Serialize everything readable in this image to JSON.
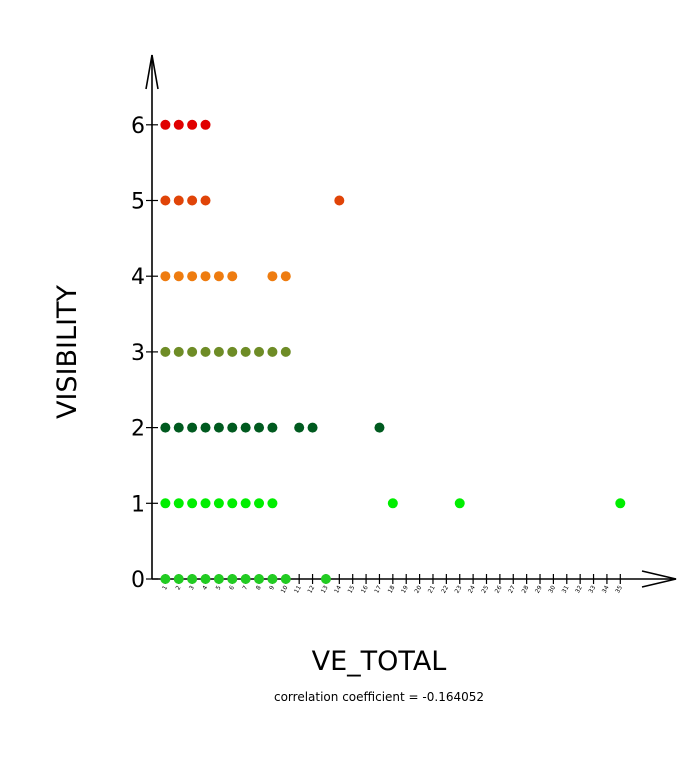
{
  "chart_data": {
    "type": "scatter",
    "title": "",
    "xlabel": "VE_TOTAL",
    "ylabel": "VISIBILITY",
    "annotation": "correlation coefficient = -0.164052",
    "xlim": [
      0,
      35
    ],
    "ylim": [
      0,
      6
    ],
    "x_ticks": [
      1,
      2,
      3,
      4,
      5,
      6,
      7,
      8,
      9,
      10,
      11,
      12,
      13,
      14,
      15,
      16,
      17,
      18,
      19,
      20,
      21,
      22,
      23,
      24,
      25,
      26,
      27,
      28,
      29,
      30,
      31,
      32,
      33,
      34,
      35
    ],
    "y_ticks": [
      0,
      1,
      2,
      3,
      4,
      5,
      6
    ],
    "grid": false,
    "legend": "none",
    "level_colors": {
      "0": "#22cc22",
      "1": "#00ee00",
      "2": "#005a1f",
      "3": "#6e8c26",
      "4": "#ee7c10",
      "5": "#e04408",
      "6": "#e00000"
    },
    "points": [
      {
        "x": 1,
        "y": 0
      },
      {
        "x": 2,
        "y": 0
      },
      {
        "x": 3,
        "y": 0
      },
      {
        "x": 4,
        "y": 0
      },
      {
        "x": 5,
        "y": 0
      },
      {
        "x": 6,
        "y": 0
      },
      {
        "x": 7,
        "y": 0
      },
      {
        "x": 8,
        "y": 0
      },
      {
        "x": 9,
        "y": 0
      },
      {
        "x": 10,
        "y": 0
      },
      {
        "x": 13,
        "y": 0
      },
      {
        "x": 1,
        "y": 1
      },
      {
        "x": 2,
        "y": 1
      },
      {
        "x": 3,
        "y": 1
      },
      {
        "x": 4,
        "y": 1
      },
      {
        "x": 5,
        "y": 1
      },
      {
        "x": 6,
        "y": 1
      },
      {
        "x": 7,
        "y": 1
      },
      {
        "x": 8,
        "y": 1
      },
      {
        "x": 9,
        "y": 1
      },
      {
        "x": 18,
        "y": 1
      },
      {
        "x": 23,
        "y": 1
      },
      {
        "x": 35,
        "y": 1
      },
      {
        "x": 1,
        "y": 2
      },
      {
        "x": 2,
        "y": 2
      },
      {
        "x": 3,
        "y": 2
      },
      {
        "x": 4,
        "y": 2
      },
      {
        "x": 5,
        "y": 2
      },
      {
        "x": 6,
        "y": 2
      },
      {
        "x": 7,
        "y": 2
      },
      {
        "x": 8,
        "y": 2
      },
      {
        "x": 9,
        "y": 2
      },
      {
        "x": 11,
        "y": 2
      },
      {
        "x": 12,
        "y": 2
      },
      {
        "x": 17,
        "y": 2
      },
      {
        "x": 1,
        "y": 3
      },
      {
        "x": 2,
        "y": 3
      },
      {
        "x": 3,
        "y": 3
      },
      {
        "x": 4,
        "y": 3
      },
      {
        "x": 5,
        "y": 3
      },
      {
        "x": 6,
        "y": 3
      },
      {
        "x": 7,
        "y": 3
      },
      {
        "x": 8,
        "y": 3
      },
      {
        "x": 9,
        "y": 3
      },
      {
        "x": 10,
        "y": 3
      },
      {
        "x": 1,
        "y": 4
      },
      {
        "x": 2,
        "y": 4
      },
      {
        "x": 3,
        "y": 4
      },
      {
        "x": 4,
        "y": 4
      },
      {
        "x": 5,
        "y": 4
      },
      {
        "x": 6,
        "y": 4
      },
      {
        "x": 9,
        "y": 4
      },
      {
        "x": 10,
        "y": 4
      },
      {
        "x": 1,
        "y": 5
      },
      {
        "x": 2,
        "y": 5
      },
      {
        "x": 3,
        "y": 5
      },
      {
        "x": 4,
        "y": 5
      },
      {
        "x": 14,
        "y": 5
      },
      {
        "x": 1,
        "y": 6
      },
      {
        "x": 2,
        "y": 6
      },
      {
        "x": 3,
        "y": 6
      },
      {
        "x": 4,
        "y": 6
      }
    ]
  }
}
